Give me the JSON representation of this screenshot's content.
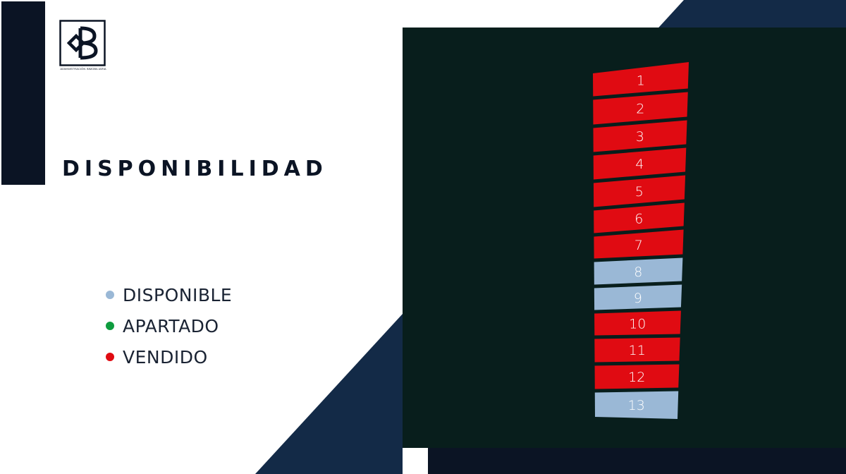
{
  "brand": {
    "tagline": "ADMINISTRACIÓN INMOBILIARIA"
  },
  "title": "DISPONIBILIDAD",
  "colors": {
    "navy": "#0b1424",
    "diagonal": "#132a47",
    "map_bg": "#081e1c",
    "disponible": "#9ab8d6",
    "apartado": "#0e9c3e",
    "vendido": "#e00b12"
  },
  "legend": [
    {
      "label": "DISPONIBLE",
      "status": "disponible"
    },
    {
      "label": "APARTADO",
      "status": "apartado"
    },
    {
      "label": "VENDIDO",
      "status": "vendido"
    }
  ],
  "lots": [
    {
      "number": "1",
      "status": "vendido"
    },
    {
      "number": "2",
      "status": "vendido"
    },
    {
      "number": "3",
      "status": "vendido"
    },
    {
      "number": "4",
      "status": "vendido"
    },
    {
      "number": "5",
      "status": "vendido"
    },
    {
      "number": "6",
      "status": "vendido"
    },
    {
      "number": "7",
      "status": "vendido"
    },
    {
      "number": "8",
      "status": "disponible"
    },
    {
      "number": "9",
      "status": "disponible"
    },
    {
      "number": "10",
      "status": "vendido"
    },
    {
      "number": "11",
      "status": "vendido"
    },
    {
      "number": "12",
      "status": "vendido"
    },
    {
      "number": "13",
      "status": "disponible"
    }
  ]
}
